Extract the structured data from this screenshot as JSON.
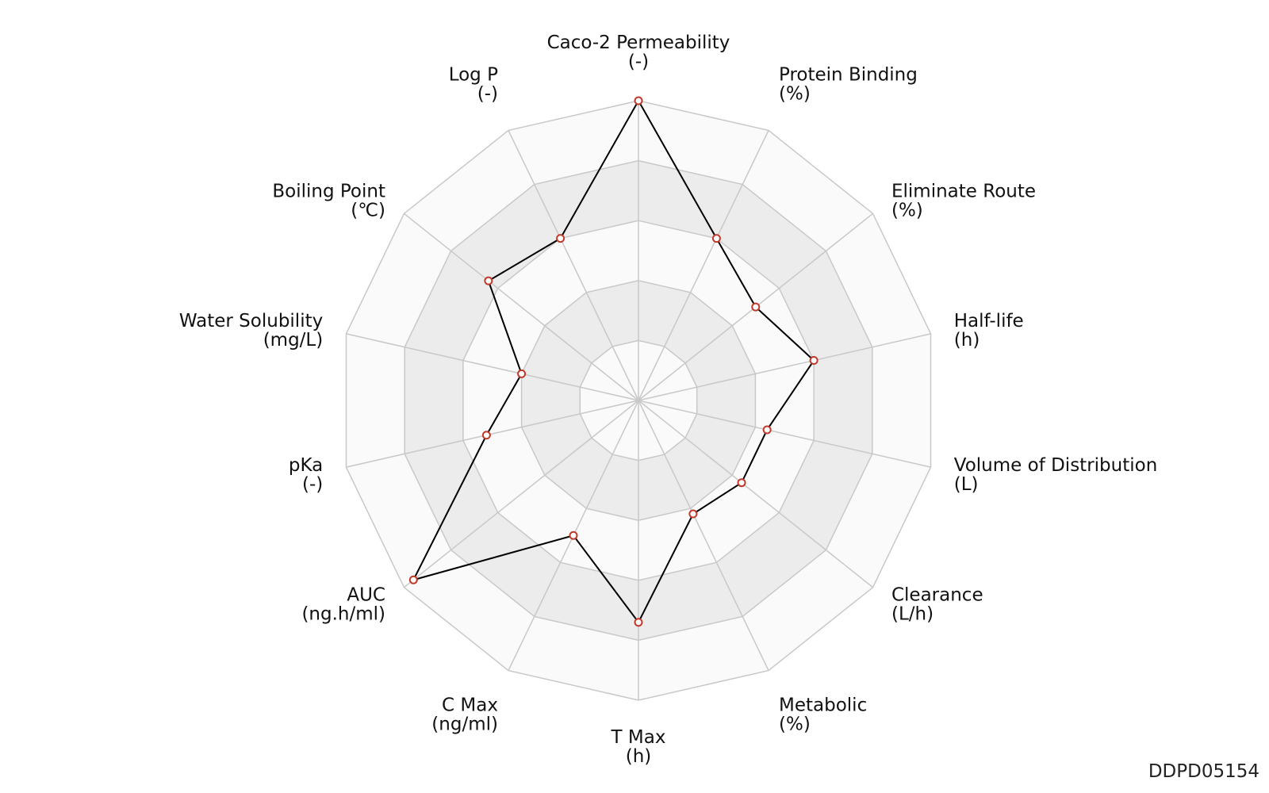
{
  "chart_data": {
    "type": "radar",
    "axes": [
      {
        "name": "Caco-2 Permeability",
        "unit": "(-)",
        "value": 5.0
      },
      {
        "name": "Protein Binding",
        "unit": "(%)",
        "value": 3.0
      },
      {
        "name": "Eliminate Route",
        "unit": "(%)",
        "value": 2.5
      },
      {
        "name": "Half-life",
        "unit": "(h)",
        "value": 3.0
      },
      {
        "name": "Volume of Distribution",
        "unit": "(L)",
        "value": 2.2
      },
      {
        "name": "Clearance",
        "unit": "(L/h)",
        "value": 2.2
      },
      {
        "name": "Metabolic",
        "unit": "(%)",
        "value": 2.1
      },
      {
        "name": "T Max",
        "unit": "(h)",
        "value": 3.7
      },
      {
        "name": "C Max",
        "unit": "(ng/ml)",
        "value": 2.5
      },
      {
        "name": "AUC",
        "unit": "(ng.h/ml)",
        "value": 4.8
      },
      {
        "name": "pKa",
        "unit": "(-)",
        "value": 2.6
      },
      {
        "name": "Water Solubility",
        "unit": "(mg/L)",
        "value": 2.0
      },
      {
        "name": "Boiling Point",
        "unit": "(℃)",
        "value": 3.2
      },
      {
        "name": "Log P",
        "unit": "(-)",
        "value": 3.0
      }
    ],
    "rmax": 5,
    "rings": 5,
    "grid": true,
    "colors": {
      "line": "#000000",
      "marker_edge": "#c0392b",
      "marker_fill": "#ffffff",
      "grid": "#c8c8c8",
      "band_light": "#fafafa",
      "band_dark": "#ececec"
    }
  },
  "footer": {
    "id": "DDPD05154"
  }
}
